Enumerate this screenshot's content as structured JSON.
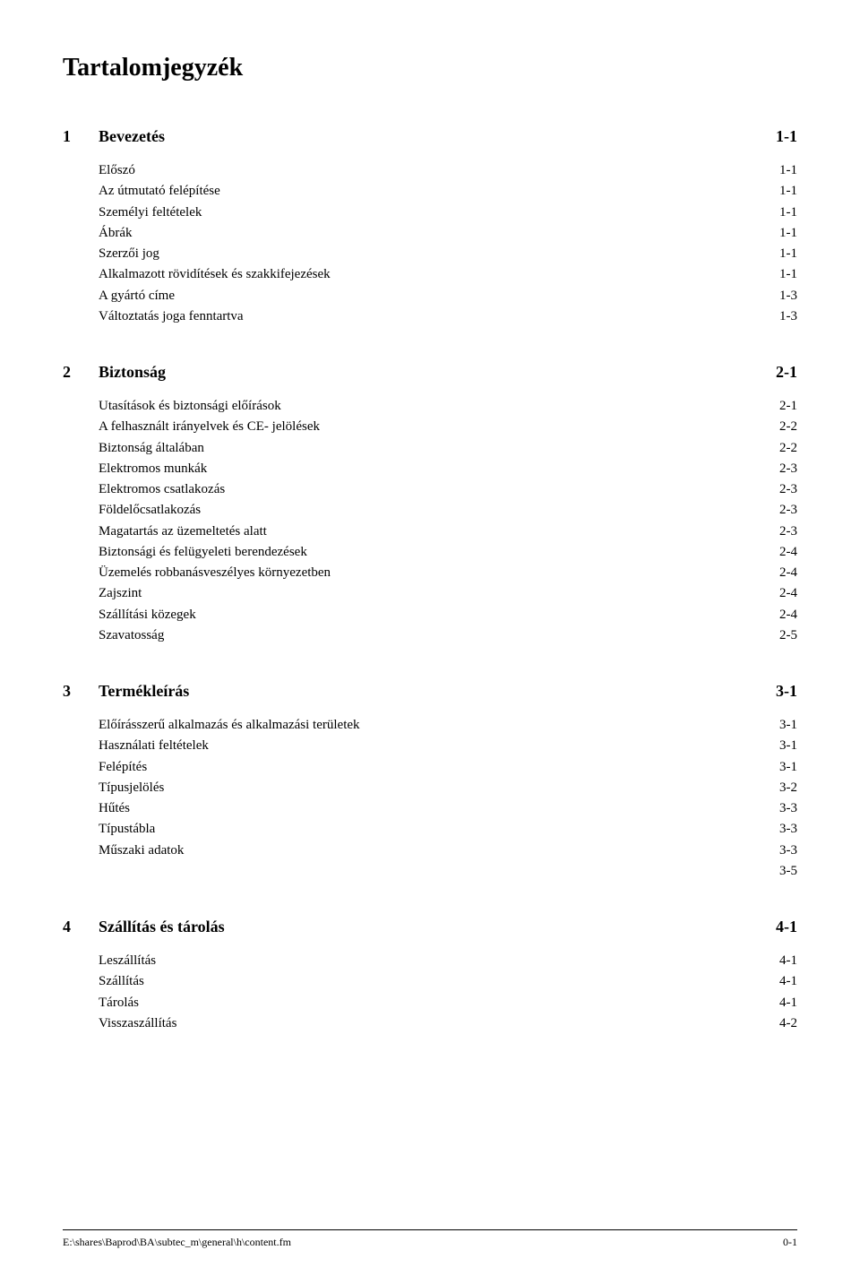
{
  "title": "Tartalomjegyzék",
  "sections": [
    {
      "number": "1",
      "title": "Bevezetés",
      "page": "1-1",
      "entries": [
        {
          "title": "Előszó",
          "page": "1-1"
        },
        {
          "title": "Az útmutató felépítése",
          "page": "1-1"
        },
        {
          "title": "Személyi feltételek",
          "page": "1-1"
        },
        {
          "title": "Ábrák",
          "page": "1-1"
        },
        {
          "title": "Szerzői jog",
          "page": "1-1"
        },
        {
          "title": "Alkalmazott rövidítések és szakkifejezések",
          "page": "1-1"
        },
        {
          "title": "A gyártó címe",
          "page": "1-3"
        },
        {
          "title": "Változtatás joga fenntartva",
          "page": "1-3"
        }
      ]
    },
    {
      "number": "2",
      "title": "Biztonság",
      "page": "2-1",
      "entries": [
        {
          "title": "Utasítások és biztonsági előírások",
          "page": "2-1"
        },
        {
          "title": "A felhasznált irányelvek és CE- jelölések",
          "page": "2-2"
        },
        {
          "title": "Biztonság általában",
          "page": "2-2"
        },
        {
          "title": "Elektromos munkák",
          "page": "2-3"
        },
        {
          "title": "Elektromos csatlakozás",
          "page": "2-3"
        },
        {
          "title": "Földelőcsatlakozás",
          "page": "2-3"
        },
        {
          "title": "Magatartás az üzemeltetés alatt",
          "page": "2-3"
        },
        {
          "title": "Biztonsági és felügyeleti berendezések",
          "page": "2-4"
        },
        {
          "title": "Üzemelés robbanásveszélyes környezetben",
          "page": "2-4"
        },
        {
          "title": "Zajszint",
          "page": "2-4"
        },
        {
          "title": "Szállítási közegek",
          "page": "2-4"
        },
        {
          "title": "Szavatosság",
          "page": "2-5"
        }
      ]
    },
    {
      "number": "3",
      "title": "Termékleírás",
      "page": "3-1",
      "entries": [
        {
          "title": "Előírásszerű alkalmazás és alkalmazási területek",
          "page": "3-1"
        },
        {
          "title": "Használati feltételek",
          "page": "3-1"
        },
        {
          "title": "Felépítés",
          "page": "3-1"
        },
        {
          "title": "Típusjelölés",
          "page": "3-2"
        },
        {
          "title": "Hűtés",
          "page": "3-3"
        },
        {
          "title": "Típustábla",
          "page": "3-3"
        },
        {
          "title": "Műszaki adatok",
          "page": "3-3"
        },
        {
          "title": "",
          "page": "3-5"
        }
      ]
    },
    {
      "number": "4",
      "title": "Szállítás és tárolás",
      "page": "4-1",
      "entries": [
        {
          "title": "Leszállítás",
          "page": "4-1"
        },
        {
          "title": "Szállítás",
          "page": "4-1"
        },
        {
          "title": "Tárolás",
          "page": "4-1"
        },
        {
          "title": "Visszaszállítás",
          "page": "4-2"
        }
      ]
    }
  ],
  "footer": {
    "path": "E:\\shares\\Baprod\\BA\\subtec_m\\general\\h\\content.fm",
    "pagenum": "0-1"
  },
  "style": {
    "background_color": "#ffffff",
    "text_color": "#000000",
    "title_fontsize": 28,
    "section_fontsize": 18,
    "entry_fontsize": 15,
    "footer_fontsize": 12
  }
}
